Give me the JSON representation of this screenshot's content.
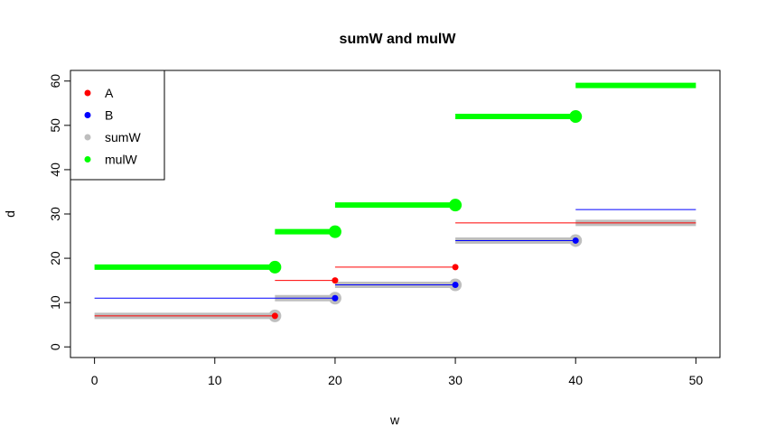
{
  "chart_data": {
    "type": "line",
    "title": "sumW and mulW",
    "xlabel": "w",
    "ylabel": "d",
    "xlim": [
      -2,
      52
    ],
    "ylim": [
      -2.4,
      62.4
    ],
    "xticks": [
      0,
      10,
      20,
      30,
      40,
      50
    ],
    "yticks": [
      0,
      10,
      20,
      30,
      40,
      50,
      60
    ],
    "legend_position": "top-left",
    "series": [
      {
        "name": "A",
        "color": "#FF0000",
        "segments": [
          {
            "x0": 0,
            "x1": 15,
            "y": 7
          },
          {
            "x0": 15,
            "x1": 20,
            "y": 15
          },
          {
            "x0": 20,
            "x1": 30,
            "y": 18
          },
          {
            "x0": 30,
            "x1": 50,
            "y": 28
          }
        ],
        "points": [
          {
            "x": 15,
            "y": 7
          },
          {
            "x": 20,
            "y": 15
          },
          {
            "x": 30,
            "y": 18
          }
        ]
      },
      {
        "name": "B",
        "color": "#0000FF",
        "segments": [
          {
            "x0": 0,
            "x1": 20,
            "y": 11
          },
          {
            "x0": 20,
            "x1": 30,
            "y": 14
          },
          {
            "x0": 30,
            "x1": 40,
            "y": 24
          },
          {
            "x0": 40,
            "x1": 50,
            "y": 31
          }
        ],
        "points": [
          {
            "x": 20,
            "y": 11
          },
          {
            "x": 30,
            "y": 14
          },
          {
            "x": 40,
            "y": 24
          }
        ]
      },
      {
        "name": "sumW",
        "color": "#BEBEBE",
        "segments": [
          {
            "x0": 0,
            "x1": 15,
            "y": 7
          },
          {
            "x0": 15,
            "x1": 20,
            "y": 11
          },
          {
            "x0": 20,
            "x1": 30,
            "y": 14
          },
          {
            "x0": 30,
            "x1": 40,
            "y": 24
          },
          {
            "x0": 40,
            "x1": 50,
            "y": 28
          }
        ],
        "points": [
          {
            "x": 15,
            "y": 7
          },
          {
            "x": 20,
            "y": 11
          },
          {
            "x": 30,
            "y": 14
          },
          {
            "x": 40,
            "y": 24
          }
        ]
      },
      {
        "name": "mulW",
        "color": "#00FF00",
        "segments": [
          {
            "x0": 0,
            "x1": 15,
            "y": 18
          },
          {
            "x0": 15,
            "x1": 20,
            "y": 26
          },
          {
            "x0": 20,
            "x1": 30,
            "y": 32
          },
          {
            "x0": 30,
            "x1": 40,
            "y": 52
          },
          {
            "x0": 40,
            "x1": 50,
            "y": 59
          }
        ],
        "points": [
          {
            "x": 15,
            "y": 18
          },
          {
            "x": 20,
            "y": 26
          },
          {
            "x": 30,
            "y": 32
          },
          {
            "x": 40,
            "y": 52
          }
        ]
      }
    ]
  }
}
